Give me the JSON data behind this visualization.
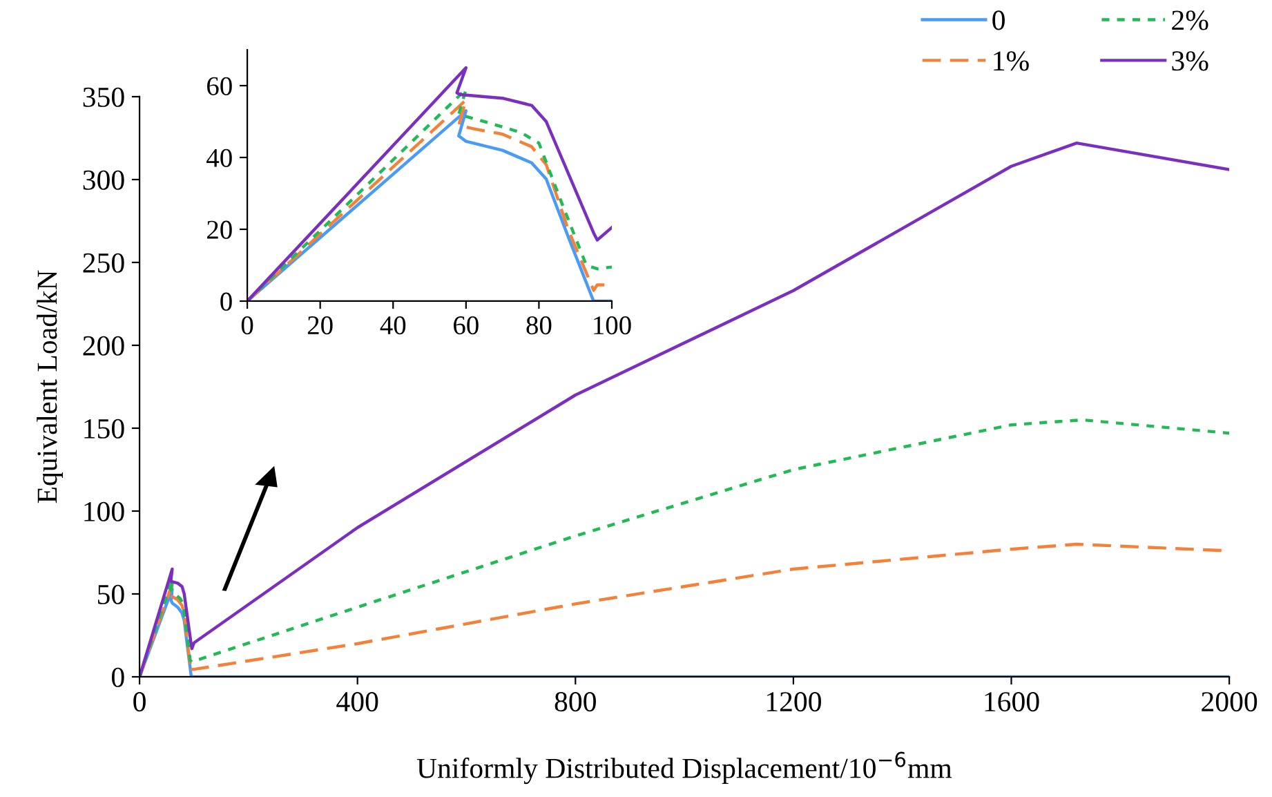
{
  "chart_data": [
    {
      "type": "line",
      "xlabel": "Uniformly Distributed Displacement/10$^{−6}$mm",
      "ylabel": "Equivalent Load/kN",
      "xlim": [
        0,
        2000
      ],
      "ylim": [
        0,
        350
      ],
      "xticks": [
        0,
        400,
        800,
        1200,
        1600,
        2000
      ],
      "yticks": [
        0,
        50,
        100,
        150,
        200,
        250,
        300,
        350
      ],
      "grid": false,
      "legend": "top right",
      "series": [
        {
          "name": "0",
          "color": "#4a9bf5",
          "line_style": "solid",
          "x": [
            0,
            60,
            58,
            60,
            70,
            78,
            82,
            88,
            95,
            2000
          ],
          "values": [
            0,
            53,
            46,
            44.5,
            42,
            38.5,
            34,
            18,
            0,
            0
          ]
        },
        {
          "name": "1%",
          "color": "#f4813a",
          "line_style": "dashed",
          "x": [
            0,
            60,
            58,
            62,
            70,
            78,
            82,
            88,
            95,
            96,
            100,
            400,
            800,
            1200,
            1600,
            1720,
            2000
          ],
          "values": [
            0,
            56,
            49,
            48,
            46.5,
            43,
            38,
            20,
            3,
            4.5,
            4.5,
            20,
            44,
            65,
            77,
            80,
            76
          ]
        },
        {
          "name": "2%",
          "color": "#22b956",
          "line_style": "dotted",
          "x": [
            0,
            60,
            58,
            65,
            75,
            80,
            86,
            93,
            96,
            100,
            400,
            800,
            1200,
            1600,
            1730,
            2000
          ],
          "values": [
            0,
            59,
            52,
            50,
            47,
            44,
            28,
            10,
            9,
            9.5,
            42,
            85,
            125,
            152,
            155,
            147
          ]
        },
        {
          "name": "3%",
          "color": "#7b2fbe",
          "line_style": "solid",
          "x": [
            0,
            60,
            57.5,
            58.5,
            70,
            78,
            82,
            95,
            96,
            100,
            400,
            800,
            1200,
            1600,
            1720,
            2000
          ],
          "values": [
            0,
            65,
            58,
            57.5,
            56.5,
            54.5,
            50,
            19,
            17,
            20.5,
            90,
            170,
            233,
            308,
            322,
            306
          ]
        }
      ]
    },
    {
      "type": "line",
      "xlim": [
        0,
        100
      ],
      "ylim": [
        0,
        70
      ],
      "xticks": [
        0,
        20,
        40,
        60,
        80,
        100
      ],
      "yticks": [
        0,
        20,
        40,
        60
      ],
      "grid": false,
      "series": [
        {
          "color": "#4a9bf5",
          "line_style": "solid",
          "x": [
            0,
            60,
            58,
            60,
            70,
            78,
            82,
            88,
            95,
            100
          ],
          "values": [
            0,
            53,
            46,
            44.5,
            42,
            38.5,
            34,
            18,
            0,
            0
          ]
        },
        {
          "color": "#f4813a",
          "line_style": "dashed",
          "x": [
            0,
            60,
            58,
            62,
            70,
            78,
            82,
            88,
            95,
            96,
            100
          ],
          "values": [
            0,
            56,
            49,
            48,
            46.5,
            43,
            38,
            20,
            3,
            4.5,
            4.5
          ]
        },
        {
          "color": "#22b956",
          "line_style": "dotted",
          "x": [
            0,
            60,
            58,
            65,
            75,
            80,
            86,
            93,
            96,
            100
          ],
          "values": [
            0,
            59,
            52,
            50,
            47,
            44,
            28,
            10,
            9,
            9.5
          ]
        },
        {
          "color": "#7b2fbe",
          "line_style": "solid",
          "x": [
            0,
            60,
            57.5,
            58.5,
            70,
            78,
            82,
            95,
            96,
            100
          ],
          "values": [
            0,
            65,
            58,
            57.5,
            56.5,
            54.5,
            50,
            19,
            17,
            20.5
          ]
        }
      ]
    }
  ]
}
